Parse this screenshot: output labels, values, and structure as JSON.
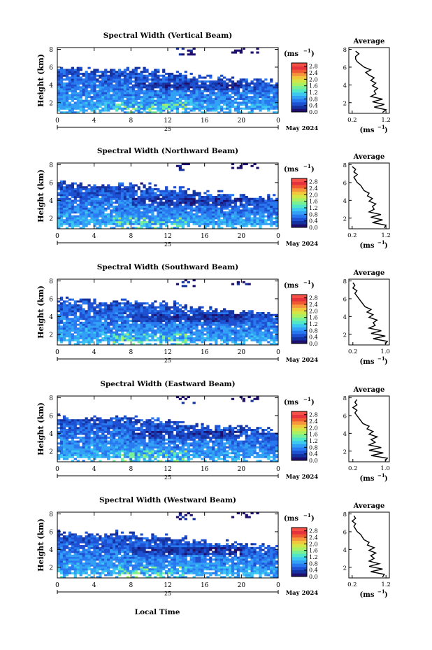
{
  "figure": {
    "time_label": "Local Time",
    "day_label": "25",
    "date_label": "May 2024",
    "y_label": "Height (km)",
    "unit_label": "(ms",
    "unit_exp": "−1",
    "avg_title": "Average",
    "colors": [
      "#1e0f6e",
      "#1432a0",
      "#1e50d2",
      "#2878f0",
      "#32a0f5",
      "#3cc8f0",
      "#50e6c8",
      "#78f096",
      "#aaf064",
      "#d2e646",
      "#f0c83c",
      "#f5963c",
      "#f05a32",
      "#e6323c",
      "#f55046"
    ]
  },
  "chart_data": [
    {
      "type": "heatmap",
      "title": "Spectral Width (Vertical Beam)",
      "x_ticks": [
        "0",
        "4",
        "8",
        "12",
        "16",
        "20",
        "0"
      ],
      "y_ticks": [
        "2",
        "4",
        "6",
        "8"
      ],
      "xlim": [
        0,
        24
      ],
      "ylim": [
        0.8,
        8.2
      ],
      "colorbar_ticks": [
        "0.0",
        "0.4",
        "0.8",
        "1.2",
        "1.6",
        "2.0",
        "2.4",
        "2.8"
      ],
      "colorbar_range": [
        0,
        3.0
      ],
      "profile": {
        "x_ticks": [
          "0.2",
          "1.2"
        ],
        "xlim": [
          0.1,
          1.3
        ],
        "heights": [
          0.9,
          1.2,
          1.5,
          1.8,
          2.1,
          2.4,
          2.7,
          3.0,
          3.3,
          3.6,
          3.9,
          4.2,
          4.5,
          4.8,
          5.1,
          5.4,
          5.7,
          6.0,
          6.3,
          6.6,
          6.9,
          7.2,
          7.5,
          7.8
        ],
        "values": [
          1.1,
          1.2,
          0.85,
          1.15,
          0.8,
          1.1,
          0.75,
          0.9,
          0.85,
          0.95,
          0.8,
          0.9,
          0.75,
          0.85,
          0.7,
          0.6,
          0.75,
          0.55,
          0.45,
          0.35,
          0.3,
          0.3,
          0.4,
          0.3
        ]
      }
    },
    {
      "type": "heatmap",
      "title": "Spectral Width (Northward Beam)",
      "x_ticks": [
        "0",
        "4",
        "8",
        "12",
        "16",
        "20",
        "0"
      ],
      "y_ticks": [
        "2",
        "4",
        "6",
        "8"
      ],
      "xlim": [
        0,
        24
      ],
      "ylim": [
        0.8,
        8.2
      ],
      "colorbar_ticks": [
        "0.0",
        "0.4",
        "0.8",
        "1.2",
        "1.6",
        "2.0",
        "2.4",
        "2.8"
      ],
      "colorbar_range": [
        0,
        3.0
      ],
      "profile": {
        "x_ticks": [
          "0.2",
          "1.2"
        ],
        "xlim": [
          0.1,
          1.3
        ],
        "heights": [
          0.9,
          1.2,
          1.5,
          1.8,
          2.1,
          2.4,
          2.7,
          3.0,
          3.3,
          3.6,
          3.9,
          4.2,
          4.5,
          4.8,
          5.1,
          5.4,
          5.7,
          6.0,
          6.3,
          6.6,
          6.9,
          7.2,
          7.5,
          7.8
        ],
        "values": [
          1.15,
          1.2,
          0.8,
          1.1,
          0.75,
          1.05,
          0.7,
          0.85,
          0.8,
          0.9,
          0.7,
          0.8,
          0.65,
          0.7,
          0.55,
          0.5,
          0.45,
          0.35,
          0.3,
          0.25,
          0.35,
          0.25,
          0.3,
          0.2
        ]
      }
    },
    {
      "type": "heatmap",
      "title": "Spectral Width (Southward Beam)",
      "x_ticks": [
        "0",
        "4",
        "8",
        "12",
        "16",
        "20",
        "0"
      ],
      "y_ticks": [
        "2",
        "4",
        "6",
        "8"
      ],
      "xlim": [
        0,
        24
      ],
      "ylim": [
        0.8,
        8.2
      ],
      "colorbar_ticks": [
        "0.0",
        "0.4",
        "0.8",
        "1.2",
        "1.6",
        "2.0",
        "2.4",
        "2.8"
      ],
      "colorbar_range": [
        0,
        3.0
      ],
      "profile": {
        "x_ticks": [
          "0.2",
          "1.0"
        ],
        "xlim": [
          0.1,
          1.1
        ],
        "heights": [
          0.9,
          1.2,
          1.5,
          1.8,
          2.1,
          2.4,
          2.7,
          3.0,
          3.3,
          3.6,
          3.9,
          4.2,
          4.5,
          4.8,
          5.1,
          5.4,
          5.7,
          6.0,
          6.3,
          6.6,
          6.9,
          7.2,
          7.5,
          7.8
        ],
        "values": [
          1.0,
          1.05,
          0.7,
          1.0,
          0.65,
          0.9,
          0.6,
          0.75,
          0.7,
          0.8,
          0.6,
          0.7,
          0.55,
          0.65,
          0.5,
          0.45,
          0.4,
          0.35,
          0.3,
          0.25,
          0.3,
          0.2,
          0.25,
          0.2
        ]
      }
    },
    {
      "type": "heatmap",
      "title": "Spectral Width (Eastward Beam)",
      "x_ticks": [
        "0",
        "4",
        "8",
        "12",
        "16",
        "20",
        "0"
      ],
      "y_ticks": [
        "2",
        "4",
        "6",
        "8"
      ],
      "xlim": [
        0,
        24
      ],
      "ylim": [
        0.8,
        8.2
      ],
      "colorbar_ticks": [
        "0.0",
        "0.4",
        "0.8",
        "1.2",
        "1.6",
        "2.0",
        "2.4",
        "2.8"
      ],
      "colorbar_range": [
        0,
        3.0
      ],
      "profile": {
        "x_ticks": [
          "0.2",
          "1.0"
        ],
        "xlim": [
          0.1,
          1.1
        ],
        "heights": [
          0.9,
          1.2,
          1.5,
          1.8,
          2.1,
          2.4,
          2.7,
          3.0,
          3.3,
          3.6,
          3.9,
          4.2,
          4.5,
          4.8,
          5.1,
          5.4,
          5.7,
          6.0,
          6.3,
          6.6,
          6.9,
          7.2,
          7.5,
          7.8
        ],
        "values": [
          1.0,
          1.05,
          0.65,
          0.95,
          0.6,
          0.9,
          0.6,
          0.75,
          0.65,
          0.8,
          0.6,
          0.7,
          0.55,
          0.6,
          0.45,
          0.4,
          0.35,
          0.3,
          0.25,
          0.3,
          0.2,
          0.3,
          0.25,
          0.3
        ]
      }
    },
    {
      "type": "heatmap",
      "title": "Spectral Width (Westward Beam)",
      "x_ticks": [
        "0",
        "4",
        "8",
        "12",
        "16",
        "20",
        "0"
      ],
      "y_ticks": [
        "2",
        "4",
        "6",
        "8"
      ],
      "xlim": [
        0,
        24
      ],
      "ylim": [
        0.8,
        8.2
      ],
      "colorbar_ticks": [
        "0.0",
        "0.4",
        "0.8",
        "1.2",
        "1.6",
        "2.0",
        "2.4",
        "2.8"
      ],
      "colorbar_range": [
        0,
        3.0
      ],
      "profile": {
        "x_ticks": [
          "0.2",
          "1.2"
        ],
        "xlim": [
          0.1,
          1.3
        ],
        "heights": [
          0.9,
          1.2,
          1.5,
          1.8,
          2.1,
          2.4,
          2.7,
          3.0,
          3.3,
          3.6,
          3.9,
          4.2,
          4.5,
          4.8,
          5.1,
          5.4,
          5.7,
          6.0,
          6.3,
          6.6,
          6.9,
          7.2,
          7.5,
          7.8
        ],
        "values": [
          1.1,
          1.15,
          0.75,
          1.1,
          0.7,
          1.0,
          0.7,
          0.85,
          0.75,
          0.9,
          0.7,
          0.85,
          0.65,
          0.7,
          0.55,
          0.5,
          0.45,
          0.35,
          0.3,
          0.25,
          0.3,
          0.2,
          0.3,
          0.25
        ]
      }
    }
  ]
}
